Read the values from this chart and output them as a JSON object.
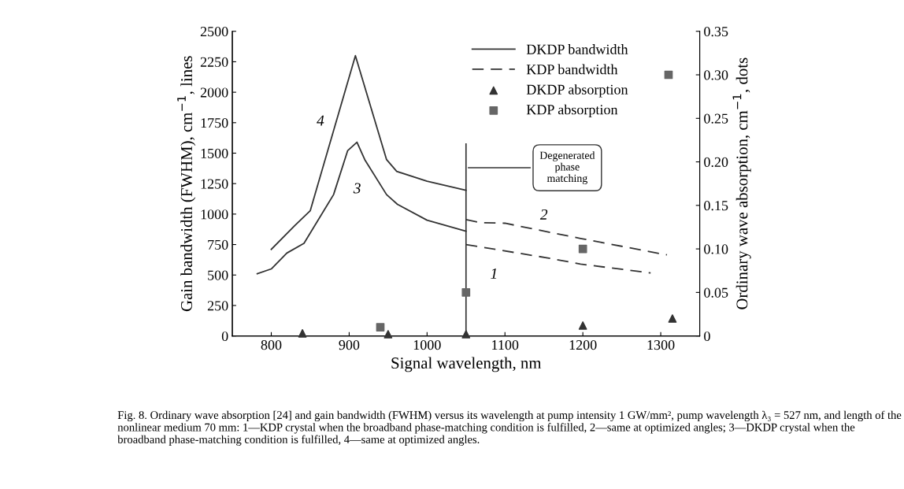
{
  "chart_data": {
    "type": "line",
    "xlabel": "Signal wavelength, nm",
    "ylabel": "Gain bandwidth (FWHM), cm$^{−1}$, lines",
    "y2label": "Ordinary wave absorption, cm$^{−1}$, dots",
    "xlim": [
      750,
      1350
    ],
    "xticks": [
      800,
      900,
      1000,
      1100,
      1200,
      1300
    ],
    "ylim": [
      0,
      2500
    ],
    "yticks": [
      0,
      250,
      500,
      750,
      1000,
      1250,
      1500,
      1750,
      2000,
      2250,
      2500
    ],
    "y2lim": [
      0,
      0.35
    ],
    "y2ticks": [
      0,
      0.05,
      {
        "value": 0.1,
        "label": "0.10"
      },
      0.15,
      {
        "value": 0.2,
        "label": "0.20"
      },
      0.25,
      {
        "value": 0.3,
        "label": "0.30"
      },
      0.35
    ],
    "grid": false,
    "legend": "top",
    "series": [
      {
        "name": "DKDP bandwidth",
        "color": "#333333",
        "line_style": "solid",
        "marker": "none",
        "x": [
          800,
          830,
          850,
          908,
          948,
          961,
          1000,
          1050
        ],
        "values": [
          710,
          905,
          1027,
          2300,
          1447,
          1350,
          1270,
          1195
        ]
      },
      {
        "color": "#333333",
        "line_style": "solid",
        "marker": "none",
        "x": [
          782,
          800,
          820,
          842,
          880,
          898,
          910,
          920,
          948,
          962,
          1000,
          1050
        ],
        "values": [
          510,
          550,
          680,
          760,
          1160,
          1520,
          1590,
          1447,
          1160,
          1080,
          950,
          860
        ]
      },
      {
        "name": "KDP bandwidth",
        "color": "#333333",
        "line_style": "dashed",
        "marker": "none",
        "x": [
          1050,
          1068,
          1100,
          1197,
          1308
        ],
        "values": [
          955,
          930,
          925,
          800,
          665
        ]
      },
      {
        "color": "#333333",
        "line_style": "dashed",
        "marker": "none",
        "x": [
          1050,
          1155,
          1197,
          1287
        ],
        "values": [
          750,
          640,
          590,
          517
        ]
      },
      {
        "name": "DKDP absorption",
        "type": "scatter",
        "axis": "y2",
        "color": "#333333",
        "marker": "triangle",
        "x": [
          840,
          950,
          1050,
          1200,
          1315
        ],
        "values": [
          0.003,
          0.002,
          0.002,
          0.012,
          0.02
        ]
      },
      {
        "name": "KDP absorption",
        "type": "scatter",
        "axis": "y2",
        "color": "#666666",
        "marker": "square",
        "x": [
          940,
          1050,
          1200,
          1310
        ],
        "values": [
          0.01,
          0.05,
          0.1,
          0.3
        ]
      }
    ],
    "ref_lines": [
      {
        "axis": "x",
        "value": 1050,
        "label": "Degenerated\nphase\nmatching",
        "color": "#333333",
        "line_style": "solid"
      }
    ],
    "annotations": [
      {
        "text": "4",
        "x": 880,
        "y": 1685
      },
      {
        "text": "3",
        "x": 930,
        "y": 1345
      },
      {
        "text": "2",
        "x": 1150,
        "y": 860
      },
      {
        "text": "1",
        "x": 1100,
        "y": 698
      },
      "Fig. 8. Ordinary wave absorption [24] and gain bandwidth (FWHM) versus its wavelength at pump intensity 1 GW/mm², pump wavelength λ₃ = 527 nm, and length of the nonlinear medium 70 mm: 1—KDP crystal when the broadband phase-matching condition is fulfilled, 2—same at optimized angles; 3—DKDP crystal when the broadband phase-matching condition is fulfilled, 4—same at optimized angles."
    ]
  }
}
